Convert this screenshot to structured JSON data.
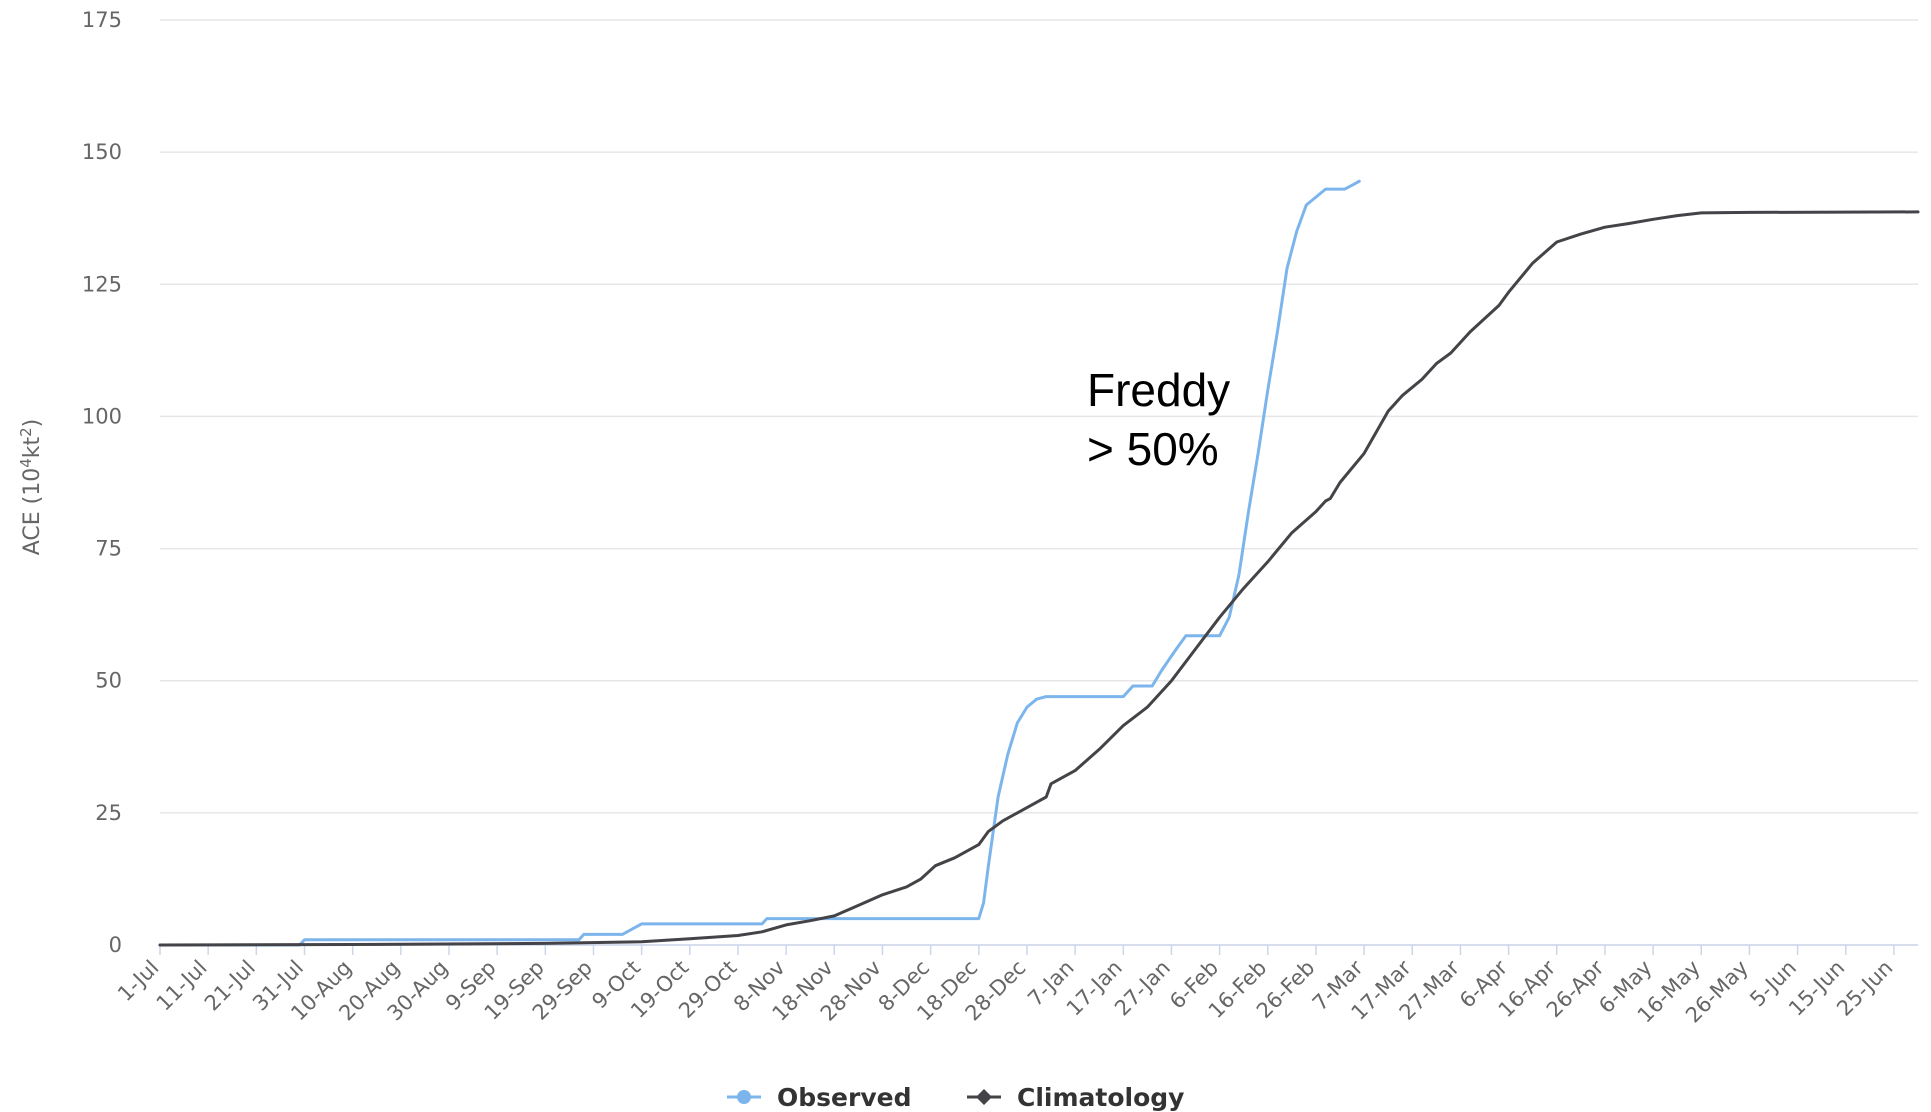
{
  "chart_data": {
    "type": "line",
    "title": "",
    "xlabel": "",
    "ylabel": "ACE (10",
    "ylabel_sup1": "4",
    "ylabel_mid": "kt",
    "ylabel_sup2": "2",
    "ylabel_end": ")",
    "ylim": [
      0,
      175
    ],
    "yticks": [
      0,
      25,
      50,
      75,
      100,
      125,
      150,
      175
    ],
    "xlim": [
      0,
      365
    ],
    "x_unit": "day of season starting 1-Jul",
    "xticks": [
      {
        "day": 0,
        "label": "1-Jul"
      },
      {
        "day": 10,
        "label": "11-Jul"
      },
      {
        "day": 20,
        "label": "21-Jul"
      },
      {
        "day": 30,
        "label": "31-Jul"
      },
      {
        "day": 40,
        "label": "10-Aug"
      },
      {
        "day": 50,
        "label": "20-Aug"
      },
      {
        "day": 60,
        "label": "30-Aug"
      },
      {
        "day": 70,
        "label": "9-Sep"
      },
      {
        "day": 80,
        "label": "19-Sep"
      },
      {
        "day": 90,
        "label": "29-Sep"
      },
      {
        "day": 100,
        "label": "9-Oct"
      },
      {
        "day": 110,
        "label": "19-Oct"
      },
      {
        "day": 120,
        "label": "29-Oct"
      },
      {
        "day": 130,
        "label": "8-Nov"
      },
      {
        "day": 140,
        "label": "18-Nov"
      },
      {
        "day": 150,
        "label": "28-Nov"
      },
      {
        "day": 160,
        "label": "8-Dec"
      },
      {
        "day": 170,
        "label": "18-Dec"
      },
      {
        "day": 180,
        "label": "28-Dec"
      },
      {
        "day": 190,
        "label": "7-Jan"
      },
      {
        "day": 200,
        "label": "17-Jan"
      },
      {
        "day": 210,
        "label": "27-Jan"
      },
      {
        "day": 220,
        "label": "6-Feb"
      },
      {
        "day": 230,
        "label": "16-Feb"
      },
      {
        "day": 240,
        "label": "26-Feb"
      },
      {
        "day": 250,
        "label": "7-Mar"
      },
      {
        "day": 260,
        "label": "17-Mar"
      },
      {
        "day": 270,
        "label": "27-Mar"
      },
      {
        "day": 280,
        "label": "6-Apr"
      },
      {
        "day": 290,
        "label": "16-Apr"
      },
      {
        "day": 300,
        "label": "26-Apr"
      },
      {
        "day": 310,
        "label": "6-May"
      },
      {
        "day": 320,
        "label": "16-May"
      },
      {
        "day": 330,
        "label": "26-May"
      },
      {
        "day": 340,
        "label": "5-Jun"
      },
      {
        "day": 350,
        "label": "15-Jun"
      },
      {
        "day": 360,
        "label": "25-Jun"
      }
    ],
    "grid": true,
    "legend_position": "bottom-center",
    "annotation": {
      "line1": "Freddy",
      "line2": "> 50%",
      "day": 193,
      "value": 105
    },
    "series": [
      {
        "name": "Observed",
        "color": "#7cb5ec",
        "points": [
          [
            0,
            0
          ],
          [
            29,
            0
          ],
          [
            30,
            1
          ],
          [
            87,
            1
          ],
          [
            88,
            2
          ],
          [
            96,
            2
          ],
          [
            100,
            4
          ],
          [
            125,
            4
          ],
          [
            126,
            5
          ],
          [
            170,
            5
          ],
          [
            171,
            8
          ],
          [
            172,
            15
          ],
          [
            174,
            28
          ],
          [
            176,
            36
          ],
          [
            178,
            42
          ],
          [
            180,
            45
          ],
          [
            182,
            46.5
          ],
          [
            184,
            47
          ],
          [
            200,
            47
          ],
          [
            202,
            49
          ],
          [
            206,
            49
          ],
          [
            208,
            52
          ],
          [
            211,
            56
          ],
          [
            213,
            58.5
          ],
          [
            220,
            58.5
          ],
          [
            222,
            62
          ],
          [
            224,
            70
          ],
          [
            226,
            82
          ],
          [
            228,
            93
          ],
          [
            230,
            105
          ],
          [
            232,
            116
          ],
          [
            234,
            128
          ],
          [
            236,
            135
          ],
          [
            238,
            140
          ],
          [
            240,
            141.5
          ],
          [
            242,
            143
          ],
          [
            246,
            143
          ],
          [
            248,
            144
          ],
          [
            249,
            144.5
          ]
        ]
      },
      {
        "name": "Climatology",
        "color": "#434348",
        "points": [
          [
            0,
            0
          ],
          [
            40,
            0.1
          ],
          [
            80,
            0.3
          ],
          [
            100,
            0.6
          ],
          [
            110,
            1.2
          ],
          [
            120,
            1.8
          ],
          [
            125,
            2.5
          ],
          [
            130,
            3.8
          ],
          [
            135,
            4.6
          ],
          [
            140,
            5.5
          ],
          [
            145,
            7.5
          ],
          [
            150,
            9.5
          ],
          [
            155,
            11
          ],
          [
            158,
            12.5
          ],
          [
            161,
            15
          ],
          [
            165,
            16.5
          ],
          [
            170,
            19
          ],
          [
            172,
            21.5
          ],
          [
            175,
            23.5
          ],
          [
            178,
            25
          ],
          [
            181,
            26.5
          ],
          [
            184,
            28
          ],
          [
            185,
            30.5
          ],
          [
            190,
            33
          ],
          [
            195,
            37
          ],
          [
            200,
            41.5
          ],
          [
            205,
            45
          ],
          [
            210,
            50
          ],
          [
            215,
            56
          ],
          [
            220,
            62
          ],
          [
            225,
            67.5
          ],
          [
            230,
            72.5
          ],
          [
            235,
            78
          ],
          [
            240,
            82
          ],
          [
            242,
            84
          ],
          [
            243,
            84.5
          ],
          [
            245,
            87.5
          ],
          [
            250,
            93
          ],
          [
            255,
            101
          ],
          [
            258,
            104
          ],
          [
            262,
            107
          ],
          [
            265,
            110
          ],
          [
            268,
            112
          ],
          [
            272,
            116
          ],
          [
            278,
            121
          ],
          [
            280,
            123.5
          ],
          [
            285,
            129
          ],
          [
            290,
            133
          ],
          [
            295,
            134.5
          ],
          [
            300,
            135.8
          ],
          [
            305,
            136.5
          ],
          [
            310,
            137.3
          ],
          [
            315,
            138
          ],
          [
            320,
            138.5
          ],
          [
            330,
            138.6
          ],
          [
            365,
            138.7
          ]
        ]
      }
    ]
  }
}
